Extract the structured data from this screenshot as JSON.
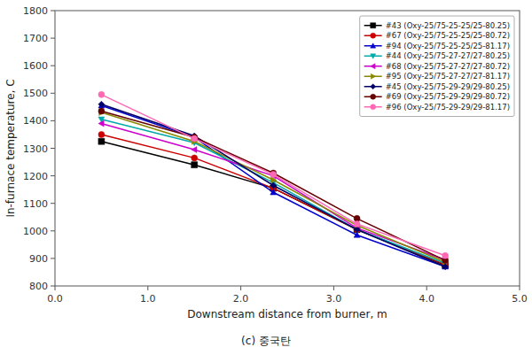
{
  "chart_data": {
    "type": "line",
    "xlabel": "Downstream distance from burner, m",
    "ylabel": "In-furnace temperature, C",
    "caption": "(c)  중국탄",
    "x": [
      0.5,
      1.5,
      2.35,
      3.25,
      4.2
    ],
    "xlim": [
      0.0,
      5.0
    ],
    "ylim": [
      800,
      1800
    ],
    "xticks": [
      {
        "value": 0.0,
        "label": "0.0"
      },
      {
        "value": 1.0,
        "label": "1.0"
      },
      {
        "value": 2.0,
        "label": "2.0"
      },
      {
        "value": 3.0,
        "label": "3.0"
      },
      {
        "value": 4.0,
        "label": "4.0"
      },
      {
        "value": 5.0,
        "label": "5.0"
      }
    ],
    "yticks": [
      800,
      900,
      1000,
      1100,
      1200,
      1300,
      1400,
      1500,
      1600,
      1700,
      1800
    ],
    "grid": false,
    "legend": "upper right",
    "series": [
      {
        "name": "#43 (Oxy-25/75-25-25/25-80.25)",
        "color": "#000000",
        "marker": "square",
        "values": [
          1325,
          1240,
          1155,
          1005,
          875
        ]
      },
      {
        "name": "#67 (Oxy-25/75-25-25/25-80.72)",
        "color": "#cc0000",
        "marker": "circle",
        "values": [
          1350,
          1265,
          1155,
          1005,
          878
        ]
      },
      {
        "name": "#94 (Oxy-25/75-25-25/25-81.17)",
        "color": "#0000cc",
        "marker": "triangle-up",
        "values": [
          1455,
          1340,
          1140,
          985,
          870
        ]
      },
      {
        "name": "#44 (Oxy-25/75-27-27/27-80.25)",
        "color": "#00aaaa",
        "marker": "triangle-down",
        "values": [
          1405,
          1320,
          1175,
          1005,
          882
        ]
      },
      {
        "name": "#68 (Oxy-25/75-27-27/27-80.72)",
        "color": "#cc00cc",
        "marker": "triangle-left",
        "values": [
          1390,
          1295,
          1200,
          1010,
          895
        ]
      },
      {
        "name": "#95 (Oxy-25/75-27-27/27-81.17)",
        "color": "#888800",
        "marker": "triangle-right",
        "values": [
          1430,
          1325,
          1185,
          1020,
          887
        ]
      },
      {
        "name": "#45 (Oxy-25/75-29-29/29-80.25)",
        "color": "#000066",
        "marker": "diamond",
        "values": [
          1460,
          1345,
          1165,
          1005,
          870
        ]
      },
      {
        "name": "#69 (Oxy-25/75-29-29/29-80.72)",
        "color": "#660000",
        "marker": "circle",
        "values": [
          1435,
          1340,
          1210,
          1045,
          893
        ]
      },
      {
        "name": "#96 (Oxy-25/75-29-29/29-81.17)",
        "color": "#ff69b4",
        "marker": "circle",
        "values": [
          1495,
          1335,
          1205,
          1025,
          910
        ]
      }
    ]
  }
}
